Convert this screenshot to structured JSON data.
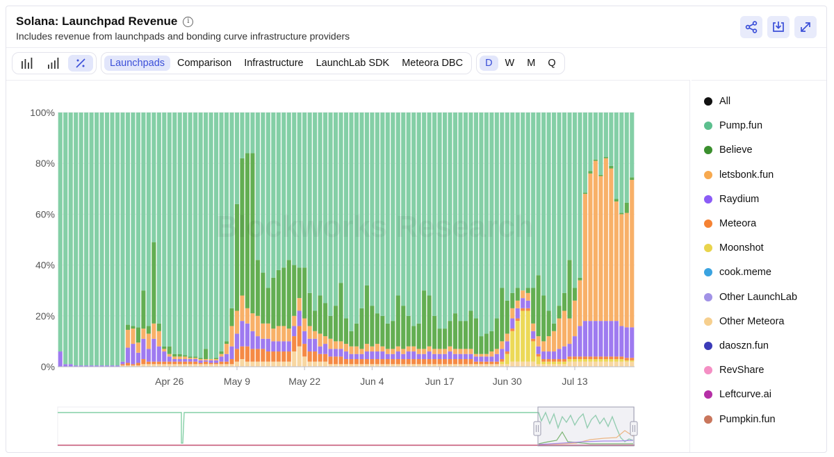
{
  "header": {
    "title": "Solana: Launchpad Revenue",
    "subtitle": "Includes revenue from launchpads and bonding curve infrastructure providers",
    "info_icon": "info-icon",
    "share_icon": "share-icon",
    "download_icon": "download-icon",
    "expand_icon": "expand-icon"
  },
  "toolbar": {
    "chart_modes": [
      {
        "icon": "bar-chart-icon",
        "active": false
      },
      {
        "icon": "stacked-bar-icon",
        "active": false
      },
      {
        "icon": "percent-icon",
        "active": true
      }
    ],
    "tabs": [
      {
        "label": "Launchpads",
        "active": true
      },
      {
        "label": "Comparison",
        "active": false
      },
      {
        "label": "Infrastructure",
        "active": false
      },
      {
        "label": "LaunchLab SDK",
        "active": false
      },
      {
        "label": "Meteora DBC",
        "active": false
      }
    ],
    "periods": [
      {
        "label": "D",
        "active": true
      },
      {
        "label": "W",
        "active": false
      },
      {
        "label": "M",
        "active": false
      },
      {
        "label": "Q",
        "active": false
      }
    ]
  },
  "legend": [
    {
      "name": "All",
      "color": "#111111"
    },
    {
      "name": "Pump.fun",
      "color": "#5cbf8e"
    },
    {
      "name": "Believe",
      "color": "#3b8f2e"
    },
    {
      "name": "letsbonk.fun",
      "color": "#f7a94f"
    },
    {
      "name": "Raydium",
      "color": "#8b5cf6"
    },
    {
      "name": "Meteora",
      "color": "#f58233"
    },
    {
      "name": "Moonshot",
      "color": "#e9d44c"
    },
    {
      "name": "cook.meme",
      "color": "#3aa3e0"
    },
    {
      "name": "Other LaunchLab",
      "color": "#a192e6"
    },
    {
      "name": "Other Meteora",
      "color": "#f6cf8e"
    },
    {
      "name": "daoszn.fun",
      "color": "#3b3bb8"
    },
    {
      "name": "RevShare",
      "color": "#f48fc4"
    },
    {
      "name": "Leftcurve.ai",
      "color": "#b52fa6"
    },
    {
      "name": "Pumpkin.fun",
      "color": "#c9765c"
    }
  ],
  "chart_data": {
    "type": "bar",
    "stacked": true,
    "normalized": true,
    "x_ticks": [
      "Apr 26",
      "May 9",
      "May 22",
      "Jun 4",
      "Jun 17",
      "Jun 30",
      "Jul 13"
    ],
    "y_ticks": [
      "0%",
      "20%",
      "40%",
      "60%",
      "80%",
      "100%"
    ],
    "ylim": [
      0,
      100
    ],
    "watermark": "Blockworks Research",
    "series_order": [
      "Other Meteora",
      "Moonshot",
      "Meteora",
      "Raydium",
      "letsbonk.fun",
      "Believe",
      "Pump.fun"
    ],
    "series_colors": {
      "Pump.fun": "#84cfa6",
      "Believe": "#63ae52",
      "letsbonk.fun": "#f8b068",
      "Raydium": "#9e7af0",
      "Meteora": "#f58a45",
      "Moonshot": "#ecd957",
      "Other Meteora": "#f8d7a2"
    },
    "bars": [
      [
        0,
        0,
        0,
        6,
        0,
        0
      ],
      [
        0,
        0,
        0,
        1,
        0,
        0
      ],
      [
        0,
        0,
        0,
        1,
        0,
        0
      ],
      [
        0,
        0,
        0,
        0.5,
        0,
        0
      ],
      [
        0,
        0,
        0,
        0.5,
        0,
        0
      ],
      [
        0,
        0,
        0,
        0.5,
        0,
        0
      ],
      [
        0,
        0,
        0,
        0.5,
        0,
        0
      ],
      [
        0,
        0,
        0,
        0.5,
        0,
        0
      ],
      [
        0,
        0,
        0,
        0.5,
        0,
        0
      ],
      [
        0,
        0,
        0,
        0.5,
        0,
        0
      ],
      [
        0,
        0,
        0,
        0.5,
        0,
        0
      ],
      [
        0,
        0,
        0,
        0.5,
        0,
        0
      ],
      [
        0.5,
        0,
        0.5,
        1,
        0,
        0
      ],
      [
        0.5,
        0,
        1,
        6,
        7,
        2
      ],
      [
        0.5,
        0,
        0.5,
        8,
        6,
        1
      ],
      [
        0.5,
        0,
        1,
        4,
        4,
        6
      ],
      [
        1,
        0,
        2,
        8,
        4,
        15
      ],
      [
        1,
        0,
        1,
        5,
        6,
        3
      ],
      [
        1,
        0,
        1,
        9,
        6,
        32
      ],
      [
        1,
        0,
        1,
        6,
        6,
        3
      ],
      [
        1,
        0,
        1,
        4,
        1,
        1
      ],
      [
        1,
        0,
        1,
        2,
        1,
        3
      ],
      [
        1,
        0,
        1,
        1,
        1,
        1
      ],
      [
        1,
        0,
        1,
        1,
        1,
        1
      ],
      [
        1,
        0,
        1,
        1,
        1,
        0.5
      ],
      [
        1,
        0,
        1,
        1,
        0.5,
        0.5
      ],
      [
        1,
        0,
        1,
        1,
        0.5,
        0.5
      ],
      [
        1,
        0,
        0.5,
        1,
        0.5,
        0.5
      ],
      [
        1,
        0,
        1,
        0.5,
        0.5,
        4
      ],
      [
        1,
        0,
        0.5,
        1,
        0.5,
        0
      ],
      [
        1,
        0,
        0.5,
        1,
        0.5,
        0.5
      ],
      [
        1,
        0,
        1,
        2,
        1,
        1
      ],
      [
        1,
        0,
        1,
        3,
        4,
        1
      ],
      [
        1,
        0,
        2,
        5,
        8,
        7
      ],
      [
        2,
        0,
        5,
        6,
        9,
        42
      ],
      [
        3,
        0,
        5,
        10,
        10,
        54
      ],
      [
        2,
        0,
        6,
        9,
        6,
        61
      ],
      [
        2,
        0,
        5,
        7,
        7,
        63
      ],
      [
        2,
        0,
        5,
        5,
        8,
        22
      ],
      [
        2,
        0,
        5,
        4,
        6,
        20
      ],
      [
        2,
        0,
        4,
        5,
        6,
        14
      ],
      [
        2,
        0,
        4,
        4,
        5,
        20
      ],
      [
        2,
        0,
        4,
        4,
        6,
        22
      ],
      [
        2,
        0,
        4,
        4,
        6,
        23
      ],
      [
        2,
        0,
        4,
        4,
        5,
        27
      ],
      [
        6,
        0,
        6,
        4,
        4,
        20
      ],
      [
        8,
        0,
        8,
        6,
        5,
        12
      ],
      [
        4,
        0,
        5,
        5,
        5,
        20
      ],
      [
        2,
        0,
        4,
        5,
        5,
        13
      ],
      [
        2,
        0,
        4,
        5,
        3,
        8
      ],
      [
        2,
        0,
        3,
        3,
        5,
        15
      ],
      [
        2,
        0,
        3,
        4,
        3,
        13
      ],
      [
        1,
        0,
        3,
        3,
        4,
        9
      ],
      [
        1,
        0,
        3,
        3,
        3,
        14
      ],
      [
        1,
        0,
        3,
        3,
        3,
        23
      ],
      [
        1,
        0,
        2,
        3,
        3,
        10
      ],
      [
        1,
        0,
        2,
        2,
        3,
        6
      ],
      [
        1,
        0,
        2,
        2,
        3,
        9
      ],
      [
        1,
        0,
        2,
        2,
        2,
        16
      ],
      [
        1,
        0,
        2,
        3,
        3,
        23
      ],
      [
        1,
        0,
        2,
        3,
        2,
        16
      ],
      [
        1,
        0,
        2,
        3,
        3,
        12
      ],
      [
        1,
        0,
        2,
        3,
        2,
        12
      ],
      [
        1,
        0,
        2,
        2,
        2,
        10
      ],
      [
        1,
        0,
        2,
        2,
        2,
        11
      ],
      [
        1,
        0,
        2,
        3,
        2,
        20
      ],
      [
        1,
        0,
        2,
        2,
        2,
        17
      ],
      [
        1,
        0,
        2,
        3,
        2,
        12
      ],
      [
        1,
        0,
        2,
        3,
        2,
        8
      ],
      [
        1,
        0,
        2,
        2,
        2,
        10
      ],
      [
        1,
        0,
        2,
        2,
        2,
        23
      ],
      [
        1,
        0,
        2,
        3,
        2,
        20
      ],
      [
        1,
        0,
        2,
        2,
        2,
        13
      ],
      [
        1,
        0,
        2,
        2,
        2,
        8
      ],
      [
        1,
        0,
        2,
        2,
        2,
        8
      ],
      [
        1,
        0,
        2,
        3,
        2,
        10
      ],
      [
        1,
        0,
        2,
        2,
        2,
        14
      ],
      [
        1,
        0,
        2,
        2,
        2,
        11
      ],
      [
        1,
        0,
        2,
        2,
        2,
        11
      ],
      [
        1,
        0,
        2,
        2,
        2,
        15
      ],
      [
        1,
        0,
        1,
        2,
        1,
        14
      ],
      [
        1,
        0,
        1,
        2,
        1,
        7
      ],
      [
        1,
        0,
        1,
        2,
        1,
        8
      ],
      [
        1,
        0,
        1,
        2,
        2,
        8
      ],
      [
        1,
        0,
        1,
        3,
        2,
        12
      ],
      [
        1,
        1,
        1,
        4,
        3,
        21
      ],
      [
        1,
        4,
        1,
        4,
        3,
        13
      ],
      [
        2,
        12,
        1,
        4,
        4,
        6
      ],
      [
        2,
        16,
        1,
        4,
        3,
        5
      ],
      [
        2,
        20,
        1,
        4,
        3,
        0
      ],
      [
        2,
        20,
        1,
        3,
        3,
        2
      ],
      [
        2,
        8,
        1,
        3,
        3,
        14
      ],
      [
        1,
        3,
        1,
        3,
        4,
        24
      ],
      [
        1,
        1,
        1,
        3,
        4,
        18
      ],
      [
        1,
        1,
        1,
        3,
        6,
        10
      ],
      [
        1,
        1,
        1,
        3,
        8,
        3
      ],
      [
        1,
        1,
        1,
        4,
        12,
        5
      ],
      [
        1,
        1,
        1,
        5,
        14,
        7
      ],
      [
        2,
        1,
        1,
        5,
        10,
        23
      ],
      [
        2,
        1,
        1,
        8,
        14,
        5
      ],
      [
        2,
        1,
        1,
        12,
        18,
        1
      ],
      [
        2,
        1,
        1,
        14,
        50,
        0.5
      ],
      [
        2,
        1,
        1,
        14,
        58,
        1
      ],
      [
        2,
        1,
        1,
        14,
        63,
        0.5
      ],
      [
        2,
        1,
        1,
        14,
        57,
        0.5
      ],
      [
        2,
        1,
        1,
        14,
        64,
        0.5
      ],
      [
        2,
        1,
        1,
        14,
        60,
        1
      ],
      [
        2,
        1,
        1,
        14,
        47,
        1
      ],
      [
        2,
        1,
        1,
        12,
        44,
        0.5
      ],
      [
        2,
        0.5,
        1,
        12,
        45,
        4
      ],
      [
        2,
        0.5,
        1,
        12,
        58,
        1
      ]
    ]
  },
  "navigator": {
    "left_handle_icon": "drag-handle-icon",
    "right_handle_icon": "drag-handle-icon"
  }
}
